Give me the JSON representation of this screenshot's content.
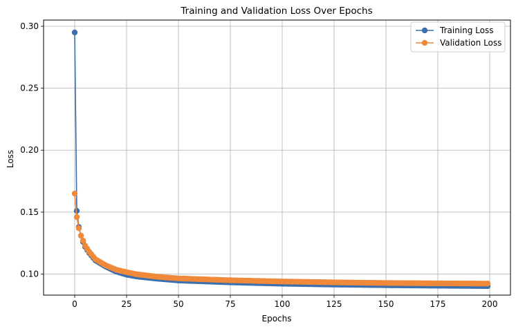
{
  "chart_data": {
    "type": "line",
    "title": "Training and Validation Loss Over Epochs",
    "xlabel": "Epochs",
    "ylabel": "Loss",
    "xlim": [
      -15,
      210
    ],
    "ylim": [
      0.083,
      0.305
    ],
    "xticks": [
      0,
      25,
      50,
      75,
      100,
      125,
      150,
      175,
      200
    ],
    "yticks": [
      0.1,
      0.15,
      0.2,
      0.25,
      0.3
    ],
    "ytick_labels": [
      "0.10",
      "0.15",
      "0.20",
      "0.25",
      "0.30"
    ],
    "grid": true,
    "legend_position": "top-right",
    "epochs": 200,
    "series": [
      {
        "name": "Training Loss",
        "color": "#3b6fae",
        "marker": "circle",
        "key_points": [
          [
            0,
            0.295
          ],
          [
            1,
            0.151
          ],
          [
            2,
            0.138
          ],
          [
            3,
            0.131
          ],
          [
            4,
            0.126
          ],
          [
            5,
            0.122
          ],
          [
            7,
            0.117
          ],
          [
            10,
            0.111
          ],
          [
            15,
            0.106
          ],
          [
            20,
            0.102
          ],
          [
            25,
            0.0995
          ],
          [
            30,
            0.098
          ],
          [
            40,
            0.0962
          ],
          [
            50,
            0.0948
          ],
          [
            75,
            0.0933
          ],
          [
            100,
            0.0922
          ],
          [
            125,
            0.0915
          ],
          [
            150,
            0.091
          ],
          [
            175,
            0.0906
          ],
          [
            199,
            0.0903
          ]
        ]
      },
      {
        "name": "Validation Loss",
        "color": "#f0893a",
        "marker": "circle",
        "key_points": [
          [
            0,
            0.165
          ],
          [
            1,
            0.146
          ],
          [
            2,
            0.137
          ],
          [
            3,
            0.131
          ],
          [
            4,
            0.127
          ],
          [
            5,
            0.123
          ],
          [
            7,
            0.118
          ],
          [
            10,
            0.112
          ],
          [
            15,
            0.107
          ],
          [
            20,
            0.1035
          ],
          [
            25,
            0.1015
          ],
          [
            30,
            0.0998
          ],
          [
            40,
            0.0978
          ],
          [
            50,
            0.0965
          ],
          [
            75,
            0.095
          ],
          [
            100,
            0.094
          ],
          [
            125,
            0.0933
          ],
          [
            150,
            0.0928
          ],
          [
            175,
            0.0925
          ],
          [
            199,
            0.0923
          ]
        ]
      }
    ]
  }
}
